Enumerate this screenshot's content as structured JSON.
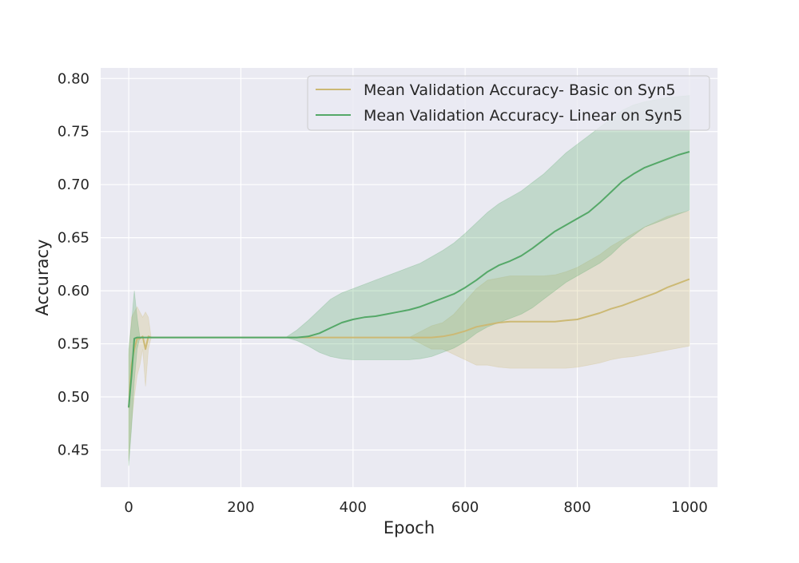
{
  "chart_data": {
    "type": "line",
    "title": "",
    "xlabel": "Epoch",
    "ylabel": "Accuracy",
    "xlim": [
      -50,
      1050
    ],
    "ylim": [
      0.415,
      0.81
    ],
    "xticks": [
      "0",
      "200",
      "400",
      "600",
      "800",
      "1000"
    ],
    "yticks": [
      "0.45",
      "0.50",
      "0.55",
      "0.60",
      "0.65",
      "0.70",
      "0.75",
      "0.80"
    ],
    "grid": true,
    "legend_position": "top-right",
    "background": "#eaeaf2",
    "series": [
      {
        "name": "Mean Validation Accuracy- Basic on Syn5",
        "color": "#ccb974",
        "x": [
          0,
          5,
          10,
          15,
          20,
          25,
          30,
          35,
          40,
          50,
          100,
          200,
          300,
          400,
          500,
          540,
          560,
          580,
          600,
          620,
          640,
          660,
          680,
          700,
          720,
          740,
          760,
          780,
          800,
          820,
          840,
          860,
          880,
          900,
          920,
          940,
          960,
          980,
          1000
        ],
        "values": [
          0.49,
          0.53,
          0.545,
          0.555,
          0.555,
          0.557,
          0.545,
          0.557,
          0.556,
          0.556,
          0.556,
          0.556,
          0.556,
          0.556,
          0.556,
          0.556,
          0.557,
          0.559,
          0.562,
          0.566,
          0.568,
          0.57,
          0.571,
          0.571,
          0.571,
          0.571,
          0.571,
          0.572,
          0.573,
          0.576,
          0.579,
          0.583,
          0.586,
          0.59,
          0.594,
          0.598,
          0.603,
          0.607,
          0.611
        ],
        "lower": [
          0.44,
          0.475,
          0.5,
          0.52,
          0.53,
          0.545,
          0.51,
          0.545,
          0.556,
          0.556,
          0.556,
          0.556,
          0.556,
          0.556,
          0.556,
          0.545,
          0.545,
          0.54,
          0.535,
          0.53,
          0.53,
          0.528,
          0.527,
          0.527,
          0.527,
          0.527,
          0.527,
          0.527,
          0.528,
          0.53,
          0.532,
          0.535,
          0.537,
          0.538,
          0.54,
          0.542,
          0.544,
          0.546,
          0.548
        ],
        "upper": [
          0.54,
          0.575,
          0.58,
          0.585,
          0.58,
          0.575,
          0.58,
          0.575,
          0.556,
          0.556,
          0.556,
          0.556,
          0.556,
          0.556,
          0.556,
          0.567,
          0.57,
          0.578,
          0.59,
          0.602,
          0.61,
          0.612,
          0.614,
          0.614,
          0.614,
          0.614,
          0.615,
          0.618,
          0.622,
          0.628,
          0.634,
          0.642,
          0.648,
          0.654,
          0.66,
          0.665,
          0.67,
          0.673,
          0.675
        ]
      },
      {
        "name": "Mean Validation Accuracy- Linear on Syn5",
        "color": "#55a868",
        "x": [
          0,
          5,
          10,
          15,
          20,
          50,
          100,
          200,
          280,
          300,
          320,
          340,
          360,
          380,
          400,
          420,
          440,
          460,
          480,
          500,
          520,
          540,
          560,
          580,
          600,
          620,
          640,
          660,
          680,
          700,
          720,
          740,
          760,
          780,
          800,
          820,
          840,
          860,
          880,
          900,
          920,
          940,
          960,
          980,
          1000
        ],
        "values": [
          0.49,
          0.52,
          0.555,
          0.556,
          0.556,
          0.556,
          0.556,
          0.556,
          0.556,
          0.556,
          0.557,
          0.56,
          0.565,
          0.57,
          0.573,
          0.575,
          0.576,
          0.578,
          0.58,
          0.582,
          0.585,
          0.589,
          0.593,
          0.597,
          0.603,
          0.61,
          0.618,
          0.624,
          0.628,
          0.633,
          0.64,
          0.648,
          0.656,
          0.662,
          0.668,
          0.674,
          0.683,
          0.693,
          0.703,
          0.71,
          0.716,
          0.72,
          0.724,
          0.728,
          0.731
        ],
        "lower": [
          0.435,
          0.47,
          0.515,
          0.545,
          0.556,
          0.556,
          0.556,
          0.556,
          0.556,
          0.553,
          0.548,
          0.542,
          0.538,
          0.536,
          0.535,
          0.535,
          0.535,
          0.535,
          0.535,
          0.535,
          0.536,
          0.538,
          0.542,
          0.546,
          0.552,
          0.56,
          0.566,
          0.57,
          0.574,
          0.578,
          0.584,
          0.592,
          0.6,
          0.608,
          0.614,
          0.62,
          0.626,
          0.634,
          0.644,
          0.652,
          0.66,
          0.664,
          0.668,
          0.672,
          0.676
        ],
        "upper": [
          0.545,
          0.57,
          0.6,
          0.575,
          0.556,
          0.556,
          0.556,
          0.556,
          0.556,
          0.563,
          0.572,
          0.582,
          0.592,
          0.598,
          0.602,
          0.606,
          0.61,
          0.614,
          0.618,
          0.622,
          0.626,
          0.632,
          0.638,
          0.645,
          0.654,
          0.664,
          0.674,
          0.682,
          0.688,
          0.694,
          0.702,
          0.71,
          0.72,
          0.73,
          0.738,
          0.746,
          0.754,
          0.762,
          0.77,
          0.775,
          0.778,
          0.78,
          0.782,
          0.783,
          0.784
        ]
      }
    ]
  }
}
